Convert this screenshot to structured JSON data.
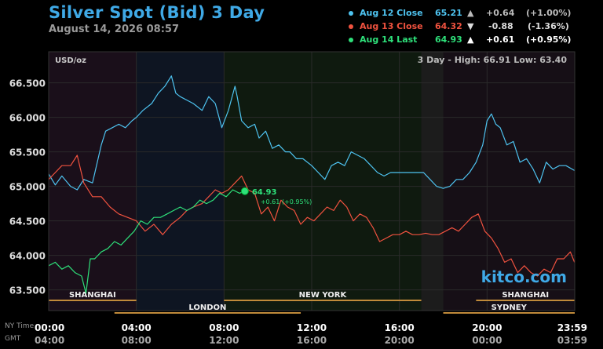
{
  "header": {
    "title": "Silver Spot (Bid) 3 Day",
    "datetime": "August 14, 2026 08:57"
  },
  "legend": [
    {
      "label": "Aug 12 Close",
      "price": "65.21",
      "arrow": "▲",
      "change": "+0.64",
      "pct": "(+1.00%)",
      "color": "#4ec3f0",
      "active": false
    },
    {
      "label": "Aug 13 Close",
      "price": "64.32",
      "arrow": "▼",
      "change": "-0.88",
      "pct": "(-1.36%)",
      "color": "#f0523f",
      "active": false
    },
    {
      "label": "Aug 14 Last",
      "price": "64.93",
      "arrow": "▲",
      "change": "+0.61",
      "pct": "(+0.95%)",
      "color": "#2ee07a",
      "active": true
    }
  ],
  "chart_data": {
    "type": "line",
    "unit_label": "USD/oz",
    "range_text": "3 Day - High: 66.91  Low: 63.40",
    "last_label": "64.93",
    "last_change": "+0.61 (+0.95%)",
    "watermark": "kitco.com",
    "ylim": [
      63.2,
      66.95
    ],
    "yticks": [
      "66.500",
      "66.000",
      "65.500",
      "65.000",
      "64.500",
      "64.000",
      "63.500"
    ],
    "x_hours_ny": [
      0,
      24
    ],
    "xticks_ny": [
      "00:00",
      "04:00",
      "08:00",
      "12:00",
      "16:00",
      "20:00",
      "23:59"
    ],
    "xticks_gmt": [
      "04:00",
      "08:00",
      "12:00",
      "16:00",
      "20:00",
      "00:00",
      "03:59"
    ],
    "tz_labels": [
      "NY Time",
      "GMT"
    ],
    "sessions": [
      {
        "name": "SHANGHAI",
        "start": 0,
        "end": 4
      },
      {
        "name": "LONDON",
        "start": 3,
        "end": 11.5
      },
      {
        "name": "NEW YORK",
        "start": 8,
        "end": 17
      },
      {
        "name": "SYDNEY",
        "start": 18,
        "end": 24
      },
      {
        "name": "SHANGHAI",
        "start": 19.5,
        "end": 24
      }
    ],
    "series": [
      {
        "name": "Aug 12 Close",
        "color": "#4ec3f0",
        "x": [
          0,
          0.3,
          0.6,
          1.0,
          1.3,
          1.6,
          2.0,
          2.4,
          2.6,
          2.9,
          3.2,
          3.5,
          3.8,
          4.0,
          4.3,
          4.7,
          5.0,
          5.3,
          5.6,
          5.8,
          6.0,
          6.3,
          6.6,
          7.0,
          7.3,
          7.6,
          7.9,
          8.2,
          8.5,
          8.6,
          8.8,
          9.1,
          9.4,
          9.6,
          9.9,
          10.2,
          10.5,
          10.8,
          11.0,
          11.3,
          11.6,
          12.0,
          12.3,
          12.6,
          12.9,
          13.2,
          13.5,
          13.8,
          14.1,
          14.4,
          14.7,
          15.0,
          15.3,
          15.6,
          15.9,
          16.2,
          16.5,
          16.8,
          17.1,
          17.4,
          17.7,
          18.0,
          18.3,
          18.6,
          18.9,
          19.2,
          19.5,
          19.8,
          20.0,
          20.2,
          20.4,
          20.6,
          20.9,
          21.2,
          21.5,
          21.8,
          22.1,
          22.4,
          22.7,
          23.0,
          23.3,
          23.6,
          23.99
        ],
        "y": [
          65.18,
          65.02,
          65.15,
          65.0,
          64.95,
          65.1,
          65.05,
          65.6,
          65.8,
          65.85,
          65.9,
          65.85,
          65.95,
          66.0,
          66.1,
          66.2,
          66.35,
          66.45,
          66.6,
          66.35,
          66.3,
          66.25,
          66.2,
          66.1,
          66.3,
          66.2,
          65.85,
          66.1,
          66.45,
          66.3,
          65.95,
          65.85,
          65.9,
          65.7,
          65.8,
          65.55,
          65.6,
          65.5,
          65.5,
          65.4,
          65.4,
          65.3,
          65.2,
          65.1,
          65.3,
          65.35,
          65.3,
          65.5,
          65.45,
          65.4,
          65.3,
          65.2,
          65.15,
          65.2,
          65.2,
          65.2,
          65.2,
          65.2,
          65.2,
          65.1,
          65.0,
          64.97,
          65.0,
          65.1,
          65.1,
          65.2,
          65.35,
          65.6,
          65.95,
          66.05,
          65.9,
          65.85,
          65.6,
          65.65,
          65.35,
          65.4,
          65.25,
          65.05,
          65.35,
          65.25,
          65.3,
          65.3,
          65.23
        ]
      },
      {
        "name": "Aug 13 Close",
        "color": "#f0523f",
        "x": [
          0,
          0.3,
          0.6,
          1.0,
          1.3,
          1.6,
          2.0,
          2.4,
          2.8,
          3.2,
          3.6,
          4.0,
          4.4,
          4.8,
          5.2,
          5.6,
          6.0,
          6.3,
          6.6,
          7.0,
          7.3,
          7.6,
          7.9,
          8.2,
          8.5,
          8.8,
          9.1,
          9.4,
          9.7,
          10.0,
          10.3,
          10.6,
          10.9,
          11.2,
          11.5,
          11.8,
          12.1,
          12.4,
          12.7,
          13.0,
          13.3,
          13.6,
          13.9,
          14.2,
          14.5,
          14.8,
          15.1,
          15.4,
          15.7,
          16.0,
          16.3,
          16.6,
          16.9,
          17.2,
          17.5,
          17.8,
          18.1,
          18.4,
          18.7,
          19.0,
          19.3,
          19.6,
          19.9,
          20.2,
          20.5,
          20.8,
          21.1,
          21.4,
          21.7,
          22.0,
          22.3,
          22.6,
          22.9,
          23.2,
          23.5,
          23.8,
          23.99
        ],
        "y": [
          65.1,
          65.2,
          65.3,
          65.3,
          65.45,
          65.05,
          64.85,
          64.85,
          64.7,
          64.6,
          64.55,
          64.5,
          64.35,
          64.45,
          64.3,
          64.45,
          64.55,
          64.65,
          64.7,
          64.75,
          64.85,
          64.95,
          64.9,
          64.95,
          65.05,
          65.15,
          64.95,
          64.9,
          64.6,
          64.7,
          64.5,
          64.8,
          64.7,
          64.65,
          64.45,
          64.55,
          64.5,
          64.6,
          64.7,
          64.65,
          64.8,
          64.7,
          64.5,
          64.6,
          64.55,
          64.4,
          64.2,
          64.25,
          64.3,
          64.3,
          64.35,
          64.3,
          64.3,
          64.32,
          64.3,
          64.3,
          64.35,
          64.4,
          64.35,
          64.45,
          64.55,
          64.6,
          64.35,
          64.25,
          64.1,
          63.9,
          63.95,
          63.75,
          63.85,
          63.75,
          63.7,
          63.8,
          63.75,
          63.95,
          63.95,
          64.05,
          63.9
        ]
      },
      {
        "name": "Aug 14 Last",
        "color": "#2ee07a",
        "x": [
          0,
          0.3,
          0.6,
          0.9,
          1.2,
          1.5,
          1.7,
          1.9,
          2.1,
          2.4,
          2.7,
          3.0,
          3.3,
          3.6,
          3.9,
          4.2,
          4.5,
          4.8,
          5.1,
          5.4,
          5.7,
          6.0,
          6.3,
          6.6,
          6.9,
          7.2,
          7.5,
          7.8,
          8.1,
          8.4,
          8.7,
          8.95
        ],
        "y": [
          63.85,
          63.9,
          63.8,
          63.85,
          63.75,
          63.7,
          63.45,
          63.95,
          63.95,
          64.05,
          64.1,
          64.2,
          64.15,
          64.25,
          64.35,
          64.5,
          64.45,
          64.55,
          64.55,
          64.6,
          64.65,
          64.7,
          64.65,
          64.7,
          64.8,
          64.75,
          64.8,
          64.9,
          64.85,
          64.95,
          64.9,
          64.93
        ]
      }
    ]
  }
}
